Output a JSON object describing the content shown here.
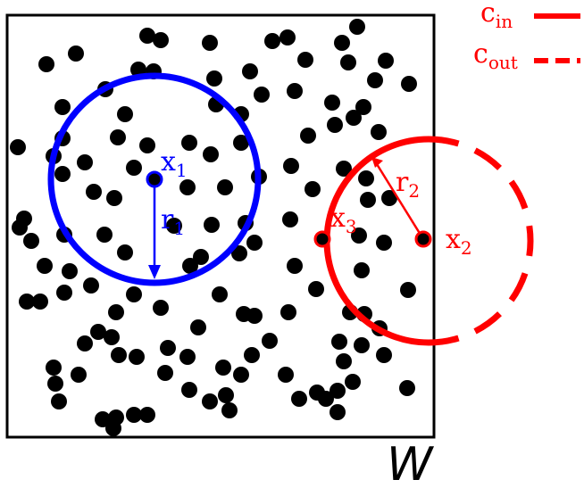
{
  "window_label": "W",
  "legend": {
    "inner": {
      "text": "c",
      "sub": "in",
      "style": "solid"
    },
    "outer": {
      "text": "c",
      "sub": "out",
      "style": "dashed"
    }
  },
  "colors": {
    "points": "#000000",
    "window_border": "#000000",
    "blue_circle": "#0000ff",
    "red_circle": "#ff0000"
  },
  "annotations": {
    "x1": {
      "text": "x",
      "sub": "1"
    },
    "r1": {
      "text": "r",
      "sub": "1"
    },
    "x2": {
      "text": "x",
      "sub": "2"
    },
    "r2": {
      "text": "r",
      "sub": "2"
    },
    "x3": {
      "text": "x",
      "sub": "3"
    }
  }
}
